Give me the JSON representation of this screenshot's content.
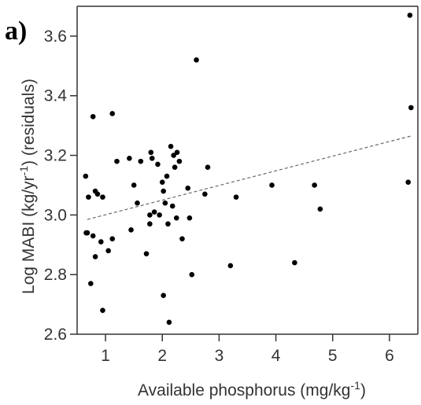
{
  "chart_data": {
    "type": "scatter",
    "panel_label": "a)",
    "title": "",
    "xlabel": "Available phosphorus (mg/kg-1)",
    "xlabel_main": "Available phosphorus (mg/kg",
    "xlabel_sup": "-1",
    "xlabel_end": ")",
    "ylabel": "Log MABI (kg/yr-1) (residuals)",
    "ylabel_main": "Log MABI (kg/yr",
    "ylabel_sup": "-1",
    "ylabel_end": ") (residuals)",
    "xlim": [
      0.5,
      6.5
    ],
    "ylim": [
      2.6,
      3.7
    ],
    "x_ticks": [
      1,
      2,
      3,
      4,
      5,
      6
    ],
    "x_tick_labels": [
      "1",
      "2",
      "3",
      "4",
      "5",
      "6"
    ],
    "y_ticks": [
      2.6,
      2.8,
      3.0,
      3.2,
      3.4,
      3.6
    ],
    "y_tick_labels": [
      "2.6",
      "2.8",
      "3.0",
      "3.2",
      "3.4",
      "3.6"
    ],
    "grid": false,
    "point_color": "#000000",
    "trend_color": "#666666",
    "trend_line": {
      "style": "dashed",
      "x": [
        0.68,
        6.38
      ],
      "y": [
        2.985,
        3.265
      ]
    },
    "series": [
      {
        "x": [
          0.65,
          0.7,
          0.78,
          0.82,
          0.86,
          0.95,
          1.12,
          0.66,
          0.68,
          0.74,
          0.78,
          0.82,
          0.92,
          0.95,
          1.05,
          1.12,
          1.2,
          1.42,
          1.5,
          1.56,
          1.62,
          1.72,
          1.78,
          1.8,
          1.82,
          1.86,
          1.92,
          1.95,
          2.0,
          2.02,
          2.05,
          2.08,
          2.1,
          2.12,
          2.15,
          2.18,
          2.2,
          2.22,
          2.25,
          2.3,
          2.35,
          2.45,
          2.48,
          2.52,
          2.6,
          2.75,
          2.8,
          3.2,
          3.3,
          3.93,
          4.33,
          4.68,
          4.78,
          6.33,
          6.36,
          6.38,
          1.45,
          2.02,
          1.78,
          2.26
        ],
        "y": [
          3.13,
          3.06,
          3.33,
          3.08,
          3.07,
          3.06,
          3.34,
          2.94,
          2.94,
          2.77,
          2.93,
          2.86,
          2.91,
          2.68,
          2.88,
          2.92,
          3.18,
          3.19,
          3.1,
          3.04,
          3.18,
          2.87,
          2.97,
          3.21,
          3.19,
          3.01,
          3.17,
          3.0,
          3.11,
          2.73,
          3.04,
          3.13,
          2.97,
          2.64,
          3.23,
          3.03,
          3.2,
          3.16,
          2.99,
          3.18,
          2.92,
          3.09,
          2.99,
          2.8,
          3.52,
          3.07,
          3.16,
          2.83,
          3.06,
          3.1,
          2.84,
          3.1,
          3.02,
          3.11,
          3.67,
          3.36,
          2.95,
          3.08,
          3.0,
          3.21
        ]
      }
    ]
  }
}
